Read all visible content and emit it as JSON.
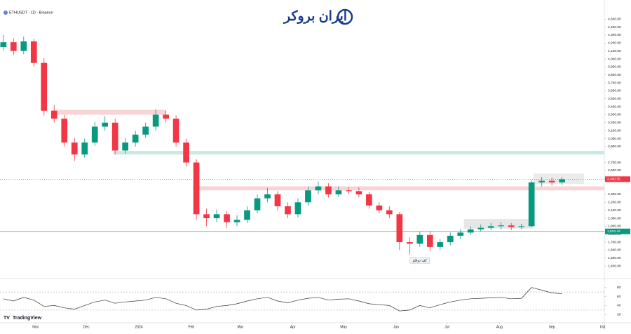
{
  "chart_data": {
    "type": "candlestick",
    "title": "ETHUSDT · 1D · Binance",
    "brand": "ایران بروکر",
    "watermark": "TradingView",
    "annotation": {
      "text": "کف دوقلو",
      "x": 246,
      "y": 1470
    },
    "x": [
      0,
      6,
      12,
      18,
      24,
      30,
      36,
      42,
      48,
      54,
      60,
      66,
      72,
      78,
      84,
      90,
      96,
      102,
      108,
      114,
      120,
      126,
      132,
      138,
      144,
      150,
      156,
      162,
      168,
      174,
      180,
      186,
      192,
      198,
      204,
      210,
      216,
      222,
      228,
      234,
      240,
      246,
      252,
      258,
      264,
      270,
      276,
      282,
      288,
      294,
      300,
      306,
      312,
      318,
      324,
      330
    ],
    "open": [
      4150,
      4210,
      4100,
      4220,
      3950,
      3350,
      3250,
      2950,
      2800,
      2950,
      3150,
      3200,
      2850,
      2950,
      3050,
      3150,
      3300,
      3250,
      2950,
      2700,
      2050,
      2000,
      2050,
      1950,
      1980,
      2100,
      2250,
      2300,
      2150,
      2050,
      2200,
      2350,
      2400,
      2300,
      2350,
      2340,
      2300,
      2160,
      2100,
      2050,
      1700,
      1680,
      1790,
      1640,
      1700,
      1780,
      1820,
      1860,
      1880,
      1900,
      1910,
      1890,
      1900,
      2450,
      2470,
      2450
    ],
    "high": [
      4300,
      4260,
      4280,
      4250,
      4010,
      3420,
      3300,
      3010,
      3000,
      3210,
      3280,
      3250,
      3010,
      3100,
      3200,
      3370,
      3350,
      3290,
      3000,
      2740,
      2120,
      2110,
      2090,
      2040,
      2150,
      2300,
      2380,
      2340,
      2200,
      2250,
      2400,
      2460,
      2440,
      2400,
      2390,
      2390,
      2330,
      2200,
      2150,
      2080,
      1760,
      1830,
      1840,
      1740,
      1820,
      1860,
      1900,
      1920,
      1940,
      1950,
      1940,
      1930,
      2480,
      2520,
      2510,
      2520
    ],
    "low": [
      4100,
      4050,
      4060,
      3900,
      3290,
      3200,
      2900,
      2720,
      2760,
      2910,
      3100,
      2800,
      2810,
      2900,
      3010,
      3100,
      3200,
      2900,
      2650,
      1980,
      1900,
      1950,
      1880,
      1900,
      1940,
      2060,
      2200,
      2100,
      2000,
      2010,
      2160,
      2300,
      2260,
      2270,
      2300,
      2260,
      2120,
      2060,
      2000,
      1600,
      1540,
      1640,
      1590,
      1600,
      1660,
      1740,
      1790,
      1830,
      1850,
      1860,
      1850,
      1860,
      1890,
      2400,
      2410,
      2420
    ],
    "close": [
      4210,
      4100,
      4220,
      3950,
      3350,
      3250,
      2950,
      2800,
      2950,
      3150,
      3200,
      2850,
      2950,
      3050,
      3150,
      3300,
      3250,
      2950,
      2700,
      2050,
      2000,
      2050,
      1950,
      1980,
      2100,
      2250,
      2300,
      2150,
      2050,
      2200,
      2350,
      2400,
      2300,
      2350,
      2340,
      2300,
      2160,
      2100,
      2050,
      1700,
      1680,
      1790,
      1640,
      1700,
      1780,
      1820,
      1860,
      1880,
      1900,
      1910,
      1890,
      1900,
      2450,
      2470,
      2450,
      2490
    ],
    "up_color": "#089981",
    "down_color": "#f23645",
    "xlim": [
      -2,
      355
    ],
    "xticks": [
      {
        "value": 19,
        "label": "Nov"
      },
      {
        "value": 49,
        "label": "Dec"
      },
      {
        "value": 80,
        "label": "2024"
      },
      {
        "value": 111,
        "label": "Feb"
      },
      {
        "value": 140,
        "label": "Mar"
      },
      {
        "value": 171,
        "label": "Apr"
      },
      {
        "value": 201,
        "label": "May"
      },
      {
        "value": 232,
        "label": "Jun"
      },
      {
        "value": 262,
        "label": "Jul"
      },
      {
        "value": 293,
        "label": "Aug"
      },
      {
        "value": 324,
        "label": "Sep"
      },
      {
        "value": 354,
        "label": "Oct"
      }
    ],
    "ylim": [
      1260,
      4740
    ],
    "yticks": [
      {
        "value": 1400,
        "label": "1,400.00"
      },
      {
        "value": 1500,
        "label": "1,500.00"
      },
      {
        "value": 1600,
        "label": "1,600.00"
      },
      {
        "value": 1700,
        "label": "1,700.00"
      },
      {
        "value": 1800,
        "label": "1,800.00"
      },
      {
        "value": 1900,
        "label": "1,900.00"
      },
      {
        "value": 2000,
        "label": "2,000.00"
      },
      {
        "value": 2100,
        "label": "2,100.00"
      },
      {
        "value": 2200,
        "label": "2,200.00"
      },
      {
        "value": 2300,
        "label": "2,300.00"
      },
      {
        "value": 2500,
        "label": "2,500.00"
      },
      {
        "value": 2600,
        "label": "2,600.00"
      },
      {
        "value": 2700,
        "label": "2,700.00"
      },
      {
        "value": 2900,
        "label": "2,900.00"
      },
      {
        "value": 3000,
        "label": "3,000.00"
      },
      {
        "value": 3100,
        "label": "3,100.00"
      },
      {
        "value": 3200,
        "label": "3,200.00"
      },
      {
        "value": 3300,
        "label": "3,300.00"
      },
      {
        "value": 3400,
        "label": "3,400.00"
      },
      {
        "value": 3500,
        "label": "3,500.00"
      },
      {
        "value": 3600,
        "label": "3,600.00"
      },
      {
        "value": 3700,
        "label": "3,700.00"
      },
      {
        "value": 3800,
        "label": "3,800.00"
      },
      {
        "value": 3900,
        "label": "3,900.00"
      },
      {
        "value": 4000,
        "label": "4,000.00"
      },
      {
        "value": 4100,
        "label": "4,100.00"
      },
      {
        "value": 4200,
        "label": "4,200.00"
      },
      {
        "value": 4300,
        "label": "4,300.00"
      },
      {
        "value": 4400,
        "label": "4,400.00"
      },
      {
        "value": 4500,
        "label": "4,500.00"
      }
    ],
    "price_labels": [
      {
        "value": 2490.35,
        "label": "2,490.35",
        "color": "#f23645"
      },
      {
        "value": 1834.42,
        "label": "1,834.42",
        "color": "#089981"
      }
    ],
    "zones": [
      {
        "low": 3300,
        "high": 3360,
        "x0": 29,
        "x1": 96,
        "color": "#f8c8cc"
      },
      {
        "low": 2800,
        "high": 2845,
        "x0": 65,
        "x1": 355,
        "color": "#b9e6dc"
      },
      {
        "low": 2350,
        "high": 2400,
        "x0": 112,
        "x1": 355,
        "color": "#f8c8cc"
      },
      {
        "low": 1870,
        "high": 1990,
        "x0": 272,
        "x1": 313,
        "color": "#e0e0e0"
      },
      {
        "low": 2430,
        "high": 2560,
        "x0": 313,
        "x1": 343,
        "color": "#e6e6e6"
      }
    ],
    "rsi": {
      "values": [
        55,
        50,
        58,
        52,
        38,
        40,
        35,
        32,
        40,
        48,
        52,
        45,
        48,
        50,
        52,
        58,
        55,
        45,
        40,
        30,
        32,
        38,
        40,
        44,
        50,
        55,
        58,
        50,
        46,
        52,
        56,
        58,
        52,
        54,
        55,
        50,
        44,
        42,
        40,
        28,
        30,
        40,
        35,
        42,
        48,
        52,
        55,
        56,
        57,
        58,
        55,
        56,
        80,
        74,
        68,
        66
      ],
      "ylim": [
        5,
        95
      ],
      "yticks": [
        20,
        40,
        60,
        80
      ],
      "bands": [
        30,
        70
      ],
      "color": "#333333"
    }
  }
}
